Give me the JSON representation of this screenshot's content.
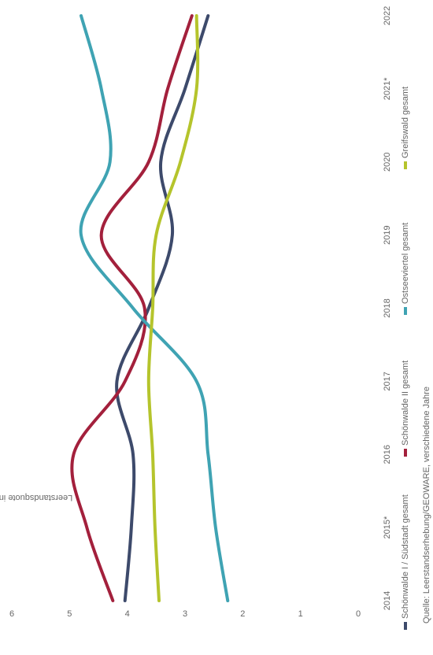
{
  "chart_data": {
    "type": "line",
    "x_label_rotation": -90,
    "ylabel": "Leerstandsquote in Prozent",
    "source": "Quelle: Leerstandserhebung/GEOWARE, verschiedene Jahre",
    "categories": [
      "2014",
      "2015*",
      "2016",
      "2017",
      "2018",
      "2019",
      "2020",
      "2021*",
      "2022"
    ],
    "series": [
      {
        "name": "Schönwalde I / Südstadt gesamt",
        "color": "#3d4a6b",
        "values": [
          4.04,
          3.93,
          3.9,
          4.18,
          3.63,
          3.22,
          3.42,
          3.0,
          2.6
        ]
      },
      {
        "name": "Schönwalde II gesamt",
        "color": "#a3203c",
        "values": [
          4.25,
          4.7,
          4.93,
          4.04,
          3.7,
          4.45,
          3.63,
          3.3,
          2.88
        ]
      },
      {
        "name": "Ostseeviertel gesamt",
        "color": "#3fa3b3",
        "values": [
          2.26,
          2.47,
          2.6,
          2.8,
          3.9,
          4.8,
          4.3,
          4.45,
          4.8
        ]
      },
      {
        "name": "Greifswald gesamt",
        "color": "#b5c42c",
        "values": [
          3.45,
          3.52,
          3.56,
          3.63,
          3.56,
          3.5,
          3.08,
          2.8,
          2.8
        ]
      }
    ],
    "ylim": [
      0,
      6
    ],
    "yticks": [
      0,
      1,
      2,
      3,
      4,
      5,
      6
    ],
    "grid": false
  }
}
